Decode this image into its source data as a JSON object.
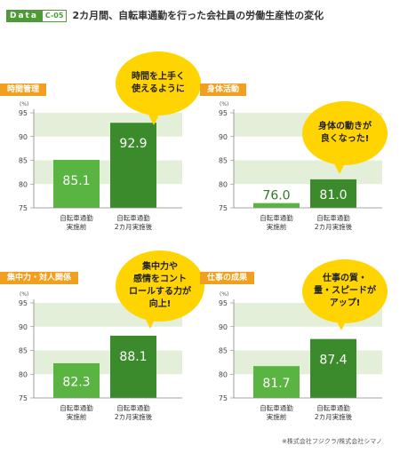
{
  "header": {
    "tag_left": "Data",
    "tag_right": "C-05",
    "title": "2カ月間、自転車通勤を行った会社員の労働生産性の変化"
  },
  "colors": {
    "band": "#e4efd9",
    "before_bar": "#5ab442",
    "after_bar": "#3b8a2b",
    "label_bg": "#f0a01e",
    "bubble": "#ffd400",
    "axis": "#888888"
  },
  "categories": [
    "自転車通勤\n実施前",
    "自転車通勤\n2カ月実施後"
  ],
  "y_unit": "(%)",
  "chart_data": [
    {
      "type": "bar",
      "title": "時間管理",
      "categories": [
        "自転車通勤 実施前",
        "自転車通勤 2カ月実施後"
      ],
      "values": [
        85.1,
        92.9
      ],
      "ylabel": "(%)",
      "ylim": [
        75,
        95
      ],
      "yticks": [
        75,
        80,
        85,
        90,
        95
      ],
      "grid": "alternating bands",
      "bubble": "時間を上手く\n使えるように"
    },
    {
      "type": "bar",
      "title": "身体活動",
      "categories": [
        "自転車通勤 実施前",
        "自転車通勤 2カ月実施後"
      ],
      "values": [
        76.0,
        81.0
      ],
      "ylabel": "(%)",
      "ylim": [
        75,
        95
      ],
      "yticks": [
        75,
        80,
        85,
        90,
        95
      ],
      "grid": "alternating bands",
      "bubble": "身体の動きが\n良くなった!"
    },
    {
      "type": "bar",
      "title": "集中力・対人関係",
      "categories": [
        "自転車通勤 実施前",
        "自転車通勤 2カ月実施後"
      ],
      "values": [
        82.3,
        88.1
      ],
      "ylabel": "(%)",
      "ylim": [
        75,
        95
      ],
      "yticks": [
        75,
        80,
        85,
        90,
        95
      ],
      "grid": "alternating bands",
      "bubble": "集中力や\n感情をコント\nロールする力が\n向上!"
    },
    {
      "type": "bar",
      "title": "仕事の成果",
      "categories": [
        "自転車通勤 実施前",
        "自転車通勤 2カ月実施後"
      ],
      "values": [
        81.7,
        87.4
      ],
      "ylabel": "(%)",
      "ylim": [
        75,
        95
      ],
      "yticks": [
        75,
        80,
        85,
        90,
        95
      ],
      "grid": "alternating bands",
      "bubble": "仕事の質・\n量・スピードが\nアップ!"
    }
  ],
  "footer": "※株式会社フジクラ/株式会社シマノ"
}
